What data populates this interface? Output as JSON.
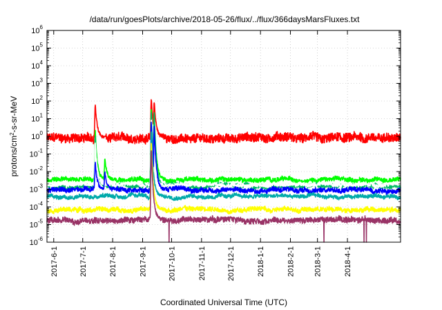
{
  "chart_data": {
    "type": "line",
    "title": "/data/run/goesPlots/archive/2018-05-26/flux/../flux/366daysMarsFluxes.txt",
    "xlabel": "Coordinated Universal Time (UTC)",
    "ylabel": "protons/cm²-s-sr-MeV",
    "ylabel_parts": {
      "before": "protons/cm",
      "sup": "2",
      "after": "-s-sr-MeV"
    },
    "x_start": "2017-05-25",
    "x_end": "2018-05-26",
    "xticks": [
      "2017-6-1",
      "2017-7-1",
      "2017-8-1",
      "2017-9-1",
      "2017-10-1",
      "2017-11-1",
      "2017-12-1",
      "2018-1-1",
      "2018-2-1",
      "2018-3-1",
      "2018-4-1"
    ],
    "xtick_dates": [
      "2017-06-01",
      "2017-07-01",
      "2017-08-01",
      "2017-09-01",
      "2017-10-01",
      "2017-11-01",
      "2017-12-01",
      "2018-01-01",
      "2018-02-01",
      "2018-03-01",
      "2018-04-01"
    ],
    "yscale": "log",
    "ylim": [
      1e-06,
      1000000.0
    ],
    "yticks": [
      {
        "base": "10",
        "exp": "-6",
        "value": 1e-06
      },
      {
        "base": "10",
        "exp": "-5",
        "value": 1e-05
      },
      {
        "base": "10",
        "exp": "-4",
        "value": 0.0001
      },
      {
        "base": "10",
        "exp": "-3",
        "value": 0.001
      },
      {
        "base": "10",
        "exp": "-2",
        "value": 0.01
      },
      {
        "base": "10",
        "exp": "-1",
        "value": 0.1
      },
      {
        "base": "10",
        "exp": "0",
        "value": 1
      },
      {
        "base": "10",
        "exp": "1",
        "value": 10
      },
      {
        "base": "10",
        "exp": "2",
        "value": 100
      },
      {
        "base": "10",
        "exp": "3",
        "value": 1000
      },
      {
        "base": "10",
        "exp": "4",
        "value": 10000
      },
      {
        "base": "10",
        "exp": "5",
        "value": 100000
      },
      {
        "base": "10",
        "exp": "6",
        "value": 1000000
      }
    ],
    "grid": true,
    "series": [
      {
        "color": "#ff0000",
        "baseline": 0.8,
        "noise": 0.25,
        "events": [
          {
            "date": "2017-07-14",
            "value": 60
          },
          {
            "date": "2017-09-10",
            "value": 150
          },
          {
            "date": "2017-09-13",
            "value": 100
          }
        ]
      },
      {
        "color": "#00ff00",
        "baseline": 0.0035,
        "noise": 0.12,
        "events": [
          {
            "date": "2017-07-14",
            "value": 2
          },
          {
            "date": "2017-07-24",
            "value": 0.05
          },
          {
            "date": "2017-09-10",
            "value": 40
          },
          {
            "date": "2017-09-13",
            "value": 30
          }
        ]
      },
      {
        "color": "#00bb66",
        "baseline": 0.0015,
        "noise": 0.12,
        "events": [
          {
            "date": "2017-07-14",
            "value": 1
          },
          {
            "date": "2017-09-10",
            "value": 30
          },
          {
            "date": "2017-09-13",
            "value": 20
          }
        ]
      },
      {
        "color": "#ffffff",
        "baseline": 0.0018,
        "noise": 0.1,
        "events": [
          {
            "date": "2017-07-14",
            "value": 0.5
          },
          {
            "date": "2017-09-10",
            "value": 10
          }
        ]
      },
      {
        "color": "#0000ff",
        "baseline": 0.0009,
        "noise": 0.13,
        "events": [
          {
            "date": "2017-07-14",
            "value": 0.03
          },
          {
            "date": "2017-07-24",
            "value": 0.01
          },
          {
            "date": "2017-09-10",
            "value": 8
          },
          {
            "date": "2017-09-13",
            "value": 5
          }
        ]
      },
      {
        "color": "#00aaaa",
        "baseline": 0.0004,
        "noise": 0.1,
        "events": [
          {
            "date": "2017-09-10",
            "value": 2
          }
        ]
      },
      {
        "color": "#ffff00",
        "baseline": 7e-05,
        "noise": 0.12,
        "events": [
          {
            "date": "2017-09-10",
            "value": 0.5
          }
        ]
      },
      {
        "color": "#993366",
        "baseline": 1.8e-05,
        "noise": 0.15,
        "events": [
          {
            "date": "2017-09-10",
            "value": 0.2
          }
        ]
      }
    ]
  }
}
